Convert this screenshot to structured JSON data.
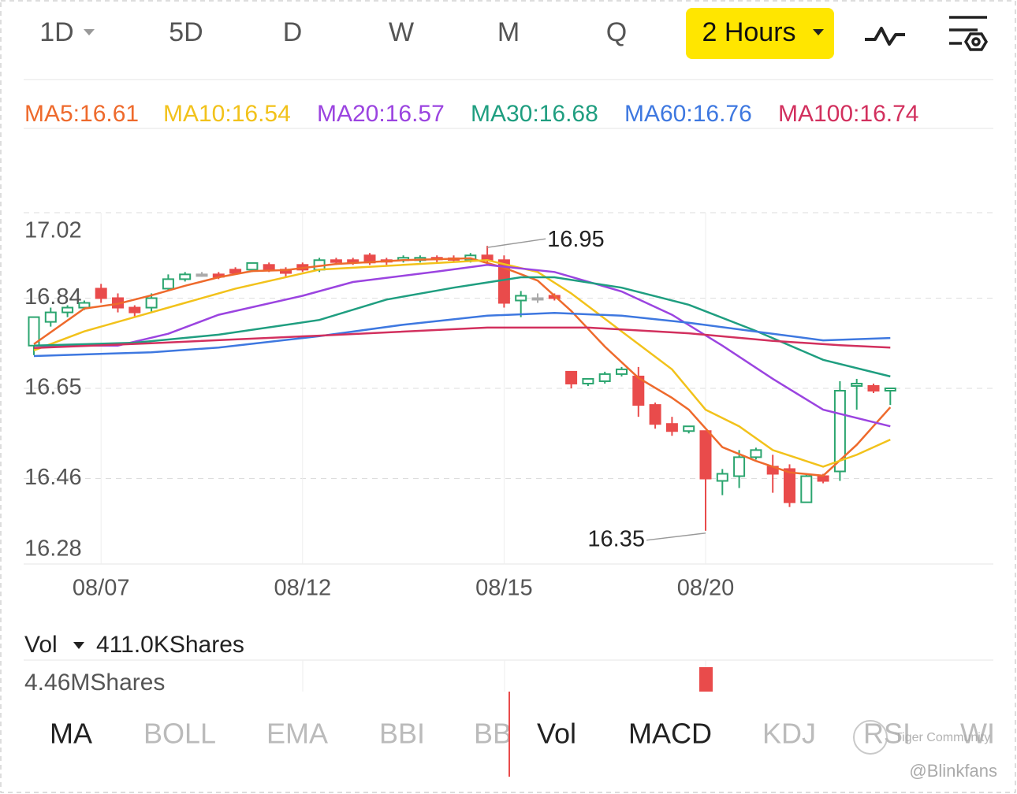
{
  "periods": [
    {
      "label": "1D"
    },
    {
      "label": "5D"
    },
    {
      "label": "D"
    },
    {
      "label": "W"
    },
    {
      "label": "M"
    },
    {
      "label": "Q"
    },
    {
      "label": "2 Hours",
      "active": true
    }
  ],
  "chart_data": {
    "type": "candlestick",
    "ylim": [
      16.28,
      17.02
    ],
    "yticks": [
      17.02,
      16.84,
      16.65,
      16.46,
      16.28
    ],
    "grid": true,
    "categories": [
      null,
      null,
      null,
      null,
      "08/07",
      null,
      null,
      null,
      null,
      null,
      null,
      null,
      null,
      null,
      null,
      null,
      "08/12",
      null,
      null,
      null,
      null,
      null,
      null,
      null,
      null,
      null,
      null,
      null,
      "08/15",
      null,
      null,
      null,
      null,
      null,
      null,
      null,
      null,
      null,
      null,
      null,
      "08/20",
      null,
      null,
      null,
      null,
      null,
      null,
      null,
      null,
      null,
      null,
      null
    ],
    "open": [
      16.74,
      16.79,
      16.81,
      16.82,
      16.86,
      16.84,
      16.82,
      16.82,
      16.86,
      16.88,
      16.89,
      16.89,
      16.9,
      16.9,
      16.91,
      16.9,
      16.91,
      16.9,
      16.92,
      16.92,
      16.93,
      16.92,
      16.92,
      16.92,
      16.925,
      16.924,
      16.92,
      16.93,
      16.92,
      16.835,
      16.84,
      16.845,
      16.685,
      16.66,
      16.665,
      16.68,
      16.675,
      16.615,
      16.575,
      16.56,
      16.56,
      16.455,
      16.465,
      16.505,
      16.485,
      16.48,
      16.41,
      16.465,
      16.475,
      16.655,
      16.655,
      16.645
    ],
    "high": [
      16.8,
      16.82,
      16.825,
      16.835,
      16.87,
      16.85,
      16.825,
      16.85,
      16.89,
      16.895,
      16.895,
      16.895,
      16.905,
      16.915,
      16.915,
      16.905,
      16.915,
      16.925,
      16.925,
      16.925,
      16.935,
      16.925,
      16.93,
      16.93,
      16.93,
      16.93,
      16.935,
      16.95,
      16.93,
      16.855,
      16.85,
      16.85,
      16.685,
      16.67,
      16.685,
      16.695,
      16.695,
      16.62,
      16.59,
      16.57,
      16.56,
      16.48,
      16.52,
      16.525,
      16.51,
      16.49,
      16.47,
      16.47,
      16.665,
      16.67,
      16.66,
      16.65
    ],
    "low": [
      16.72,
      16.78,
      16.8,
      16.815,
      16.83,
      16.81,
      16.8,
      16.81,
      16.855,
      16.875,
      16.885,
      16.88,
      16.89,
      16.895,
      16.895,
      16.885,
      16.895,
      16.895,
      16.91,
      16.91,
      16.91,
      16.91,
      16.915,
      16.915,
      16.915,
      16.915,
      16.915,
      16.91,
      16.82,
      16.8,
      16.83,
      16.835,
      16.65,
      16.655,
      16.66,
      16.675,
      16.59,
      16.565,
      16.55,
      16.555,
      16.35,
      16.425,
      16.44,
      16.5,
      16.43,
      16.4,
      16.41,
      16.45,
      16.455,
      16.605,
      16.64,
      16.615
    ],
    "close": [
      16.8,
      16.81,
      16.82,
      16.83,
      16.84,
      16.82,
      16.81,
      16.84,
      16.88,
      16.89,
      16.89,
      16.885,
      16.893,
      16.914,
      16.9,
      16.893,
      16.9,
      16.92,
      16.916,
      16.915,
      16.915,
      16.918,
      16.925,
      16.925,
      16.922,
      16.922,
      16.93,
      16.92,
      16.83,
      16.845,
      16.84,
      16.84,
      16.66,
      16.67,
      16.68,
      16.69,
      16.615,
      16.575,
      16.56,
      16.57,
      16.46,
      16.47,
      16.505,
      16.52,
      16.47,
      16.41,
      16.465,
      16.455,
      16.645,
      16.66,
      16.645,
      16.65
    ],
    "max_label": 16.95,
    "min_label": 16.35,
    "series": [
      {
        "name": "MA5:16.61",
        "color": "#ee6a2c",
        "x": [
          0,
          3,
          5,
          7,
          9,
          11,
          13,
          15,
          18,
          22,
          26,
          28,
          30,
          32,
          34,
          36,
          38,
          39,
          41,
          43,
          45,
          47,
          49,
          51
        ],
        "values": [
          16.743,
          16.818,
          16.828,
          16.846,
          16.866,
          16.884,
          16.897,
          16.899,
          16.912,
          16.92,
          16.924,
          16.904,
          16.877,
          16.813,
          16.738,
          16.672,
          16.63,
          16.605,
          16.526,
          16.497,
          16.473,
          16.466,
          16.531,
          16.61
        ]
      },
      {
        "name": "MA10:16.54",
        "color": "#f2c21b",
        "x": [
          0,
          3,
          6,
          9,
          12,
          17,
          22,
          27,
          30,
          32,
          35,
          38,
          40,
          42,
          44,
          47,
          49,
          51
        ],
        "values": [
          16.73,
          16.77,
          16.8,
          16.83,
          16.86,
          16.9,
          16.91,
          16.92,
          16.895,
          16.85,
          16.77,
          16.69,
          16.605,
          16.57,
          16.52,
          16.485,
          16.51,
          16.542
        ]
      },
      {
        "name": "MA20:16.57",
        "color": "#9b44e0",
        "x": [
          0,
          5,
          8,
          11,
          16,
          19,
          24,
          27,
          31,
          35,
          38,
          41,
          44,
          47,
          51
        ],
        "values": [
          16.74,
          16.74,
          16.765,
          16.805,
          16.845,
          16.874,
          16.896,
          16.91,
          16.895,
          16.854,
          16.805,
          16.74,
          16.67,
          16.605,
          16.57
        ]
      },
      {
        "name": "MA30:16.68",
        "color": "#1f9e80",
        "x": [
          0,
          6,
          11,
          17,
          21,
          25,
          29,
          31,
          35,
          39,
          43,
          47,
          51
        ],
        "values": [
          16.74,
          16.746,
          16.763,
          16.794,
          16.837,
          16.862,
          16.884,
          16.884,
          16.862,
          16.826,
          16.771,
          16.71,
          16.675
        ]
      },
      {
        "name": "MA60:16.76",
        "color": "#3e78e0",
        "x": [
          0,
          7,
          11,
          17,
          22,
          27,
          31,
          35,
          39,
          44,
          47,
          51
        ],
        "values": [
          16.718,
          16.726,
          16.736,
          16.76,
          16.784,
          16.803,
          16.809,
          16.803,
          16.788,
          16.765,
          16.751,
          16.756
        ]
      },
      {
        "name": "MA100:16.74",
        "color": "#d2305e",
        "x": [
          0,
          7,
          17,
          27,
          33,
          39,
          44,
          48,
          51
        ],
        "values": [
          16.735,
          16.745,
          16.761,
          16.778,
          16.778,
          16.766,
          16.75,
          16.741,
          16.736
        ]
      }
    ]
  },
  "volume": {
    "label": "Vol",
    "current": "411.0KShares",
    "max": "4.46MShares"
  },
  "indicators": [
    {
      "label": "MA",
      "selected": true
    },
    {
      "label": "BOLL"
    },
    {
      "label": "EMA"
    },
    {
      "label": "BBI"
    },
    {
      "label": "BB"
    },
    {
      "label": "Vol",
      "selected": true
    },
    {
      "label": "MACD",
      "selected": true
    },
    {
      "label": "KDJ"
    },
    {
      "label": "RSI"
    },
    {
      "label": "WI"
    }
  ],
  "watermark": {
    "brand": "Tiger Community",
    "user": "@Blinkfans"
  }
}
